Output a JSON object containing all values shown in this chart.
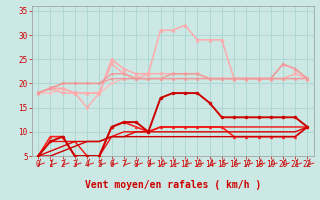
{
  "title": "",
  "xlabel": "Vent moyen/en rafales ( km/h )",
  "bg_color": "#cce8e4",
  "grid_color": "#aad4d0",
  "xlim": [
    -0.5,
    22.5
  ],
  "ylim": [
    5,
    36
  ],
  "yticks": [
    5,
    10,
    15,
    20,
    25,
    30,
    35
  ],
  "xticks": [
    0,
    1,
    2,
    3,
    4,
    5,
    6,
    7,
    8,
    9,
    10,
    11,
    12,
    13,
    14,
    15,
    16,
    17,
    18,
    19,
    20,
    21,
    22
  ],
  "series": [
    {
      "x": [
        0,
        1,
        2,
        3,
        4,
        5,
        6,
        7,
        8,
        9,
        10,
        11,
        12,
        13,
        14,
        15,
        16,
        17,
        18,
        19,
        20,
        21,
        22
      ],
      "y": [
        18,
        18,
        19,
        18,
        18,
        18,
        20,
        21,
        21,
        21,
        21,
        21,
        21,
        21,
        21,
        21,
        21,
        21,
        21,
        21,
        21,
        21,
        21
      ],
      "color": "#ffbbbb",
      "marker": "o",
      "ms": 1.8,
      "lw": 1.0,
      "zorder": 2
    },
    {
      "x": [
        0,
        1,
        2,
        3,
        4,
        5,
        6,
        7,
        8,
        9,
        10,
        11,
        12,
        13,
        14,
        15,
        16,
        17,
        18,
        19,
        20,
        21,
        22
      ],
      "y": [
        18,
        19,
        18,
        18,
        15,
        18,
        24,
        22,
        21,
        22,
        22,
        22,
        22,
        22,
        21,
        21,
        21,
        21,
        21,
        21,
        21,
        22,
        21
      ],
      "color": "#ffaaaa",
      "marker": "v",
      "ms": 2.5,
      "lw": 1.0,
      "zorder": 2
    },
    {
      "x": [
        0,
        1,
        2,
        3,
        4,
        5,
        6,
        7,
        8,
        9,
        10,
        11,
        12,
        13,
        14,
        15,
        16,
        17,
        18,
        19,
        20,
        21,
        22
      ],
      "y": [
        18,
        19,
        19,
        18,
        18,
        18,
        25,
        23,
        22,
        22,
        31,
        31,
        32,
        29,
        29,
        29,
        21,
        21,
        21,
        21,
        24,
        23,
        21
      ],
      "color": "#ffaaaa",
      "marker": "^",
      "ms": 2.5,
      "lw": 1.1,
      "zorder": 2
    },
    {
      "x": [
        0,
        1,
        2,
        3,
        4,
        5,
        6,
        7,
        8,
        9,
        10,
        11,
        12,
        13,
        14,
        15,
        16,
        17,
        18,
        19,
        20,
        21,
        22
      ],
      "y": [
        18,
        19,
        20,
        20,
        20,
        20,
        21,
        21,
        21,
        21,
        21,
        22,
        22,
        22,
        21,
        21,
        21,
        21,
        21,
        21,
        21,
        21,
        21
      ],
      "color": "#ee9999",
      "marker": "o",
      "ms": 1.5,
      "lw": 1.0,
      "zorder": 2
    },
    {
      "x": [
        0,
        1,
        2,
        3,
        4,
        5,
        6,
        7,
        8,
        9,
        10,
        11,
        12,
        13,
        14,
        15,
        16,
        17,
        18,
        19,
        20,
        21,
        22
      ],
      "y": [
        18,
        19,
        20,
        20,
        20,
        20,
        22,
        22,
        21,
        21,
        21,
        21,
        21,
        21,
        21,
        21,
        21,
        21,
        21,
        21,
        24,
        23,
        21
      ],
      "color": "#ee9999",
      "marker": "o",
      "ms": 1.5,
      "lw": 1.0,
      "zorder": 2
    },
    {
      "x": [
        0,
        1,
        2,
        3,
        4,
        5,
        6,
        7,
        8,
        9,
        10,
        11,
        12,
        13,
        14,
        15,
        16,
        17,
        18,
        19,
        20,
        21,
        22
      ],
      "y": [
        5,
        8,
        9,
        5,
        5,
        5,
        11,
        12,
        12,
        10,
        17,
        18,
        18,
        18,
        16,
        13,
        13,
        13,
        13,
        13,
        13,
        13,
        11
      ],
      "color": "#cc0000",
      "marker": "o",
      "ms": 2.2,
      "lw": 1.4,
      "zorder": 4
    },
    {
      "x": [
        0,
        1,
        2,
        3,
        4,
        5,
        6,
        7,
        8,
        9,
        10,
        11,
        12,
        13,
        14,
        15,
        16,
        17,
        18,
        19,
        20,
        21,
        22
      ],
      "y": [
        5,
        9,
        9,
        5,
        5,
        5,
        11,
        12,
        11,
        10,
        11,
        11,
        11,
        11,
        11,
        11,
        9,
        9,
        9,
        9,
        9,
        9,
        11
      ],
      "color": "#ff2222",
      "marker": "^",
      "ms": 2.0,
      "lw": 1.2,
      "zorder": 3
    },
    {
      "x": [
        0,
        1,
        2,
        3,
        4,
        5,
        6,
        7,
        8,
        9,
        10,
        11,
        12,
        13,
        14,
        15,
        16,
        17,
        18,
        19,
        20,
        21,
        22
      ],
      "y": [
        5,
        8,
        8,
        8,
        5,
        5,
        9,
        10,
        10,
        10,
        11,
        11,
        11,
        11,
        11,
        11,
        11,
        11,
        11,
        11,
        11,
        11,
        11
      ],
      "color": "#ee1111",
      "marker": null,
      "ms": 2,
      "lw": 1.0,
      "zorder": 3
    },
    {
      "x": [
        0,
        1,
        2,
        3,
        4,
        5,
        6,
        7,
        8,
        9,
        10,
        11,
        12,
        13,
        14,
        15,
        16,
        17,
        18,
        19,
        20,
        21,
        22
      ],
      "y": [
        5,
        6,
        7,
        8,
        8,
        8,
        9,
        9,
        10,
        10,
        10,
        10,
        10,
        10,
        10,
        10,
        10,
        10,
        10,
        10,
        10,
        10,
        11
      ],
      "color": "#dd0000",
      "marker": null,
      "ms": 2,
      "lw": 1.0,
      "zorder": 3
    },
    {
      "x": [
        0,
        1,
        2,
        3,
        4,
        5,
        6,
        7,
        8,
        9,
        10,
        11,
        12,
        13,
        14,
        15,
        16,
        17,
        18,
        19,
        20,
        21,
        22
      ],
      "y": [
        5,
        5,
        6,
        7,
        8,
        8,
        9,
        9,
        9,
        9,
        9,
        9,
        9,
        9,
        9,
        9,
        9,
        9,
        9,
        9,
        9,
        9,
        11
      ],
      "color": "#cc0000",
      "marker": null,
      "ms": 2,
      "lw": 1.0,
      "zorder": 3
    }
  ],
  "arrow_color": "#cc2222",
  "xlabel_color": "#cc0000",
  "xlabel_fontsize": 7,
  "tick_color": "#cc0000",
  "tick_fontsize": 5.5
}
